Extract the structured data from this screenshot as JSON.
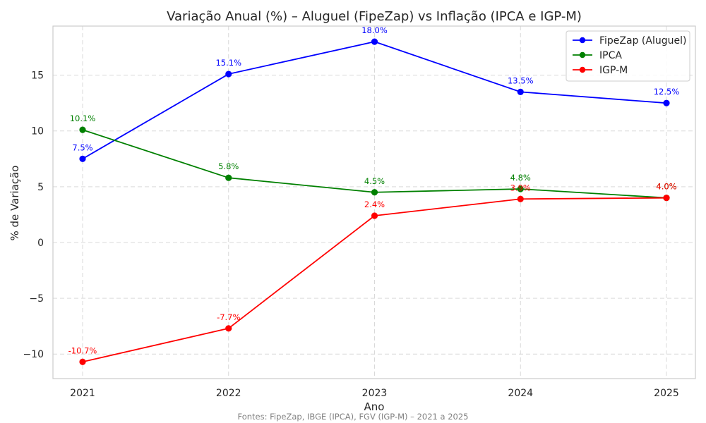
{
  "chart_data": {
    "type": "line",
    "title": "Variação Anual (%) – Aluguel (FipeZap) vs Inflação (IPCA e IGP-M)",
    "xlabel": "Ano",
    "ylabel": "% de Variação",
    "source": "Fontes: FipeZap, IBGE (IPCA), FGV (IGP-M) – 2021 a 2025",
    "categories": [
      "2021",
      "2022",
      "2023",
      "2024",
      "2025"
    ],
    "ylim": [
      -12.2,
      19.4
    ],
    "yticks": [
      -10,
      -5,
      0,
      5,
      10,
      15
    ],
    "ytick_labels": [
      "−10",
      "−5",
      "0",
      "5",
      "10",
      "15"
    ],
    "grid": true,
    "legend_position": "top-right",
    "series": [
      {
        "name": "FipeZap (Aluguel)",
        "color": "#0000ff",
        "values": [
          7.5,
          15.1,
          18.0,
          13.5,
          12.5
        ],
        "labels": [
          "7.5%",
          "15.1%",
          "18.0%",
          "13.5%",
          "12.5%"
        ]
      },
      {
        "name": "IPCA",
        "color": "#008000",
        "values": [
          10.1,
          5.8,
          4.5,
          4.8,
          4.0
        ],
        "labels": [
          "10.1%",
          "5.8%",
          "4.5%",
          "4.8%",
          "4.0%"
        ]
      },
      {
        "name": "IGP-M",
        "color": "#ff0000",
        "values": [
          -10.7,
          -7.7,
          2.4,
          3.9,
          4.0
        ],
        "labels": [
          "-10.7%",
          "-7.7%",
          "2.4%",
          "3.9%",
          "4.0%"
        ]
      }
    ]
  }
}
